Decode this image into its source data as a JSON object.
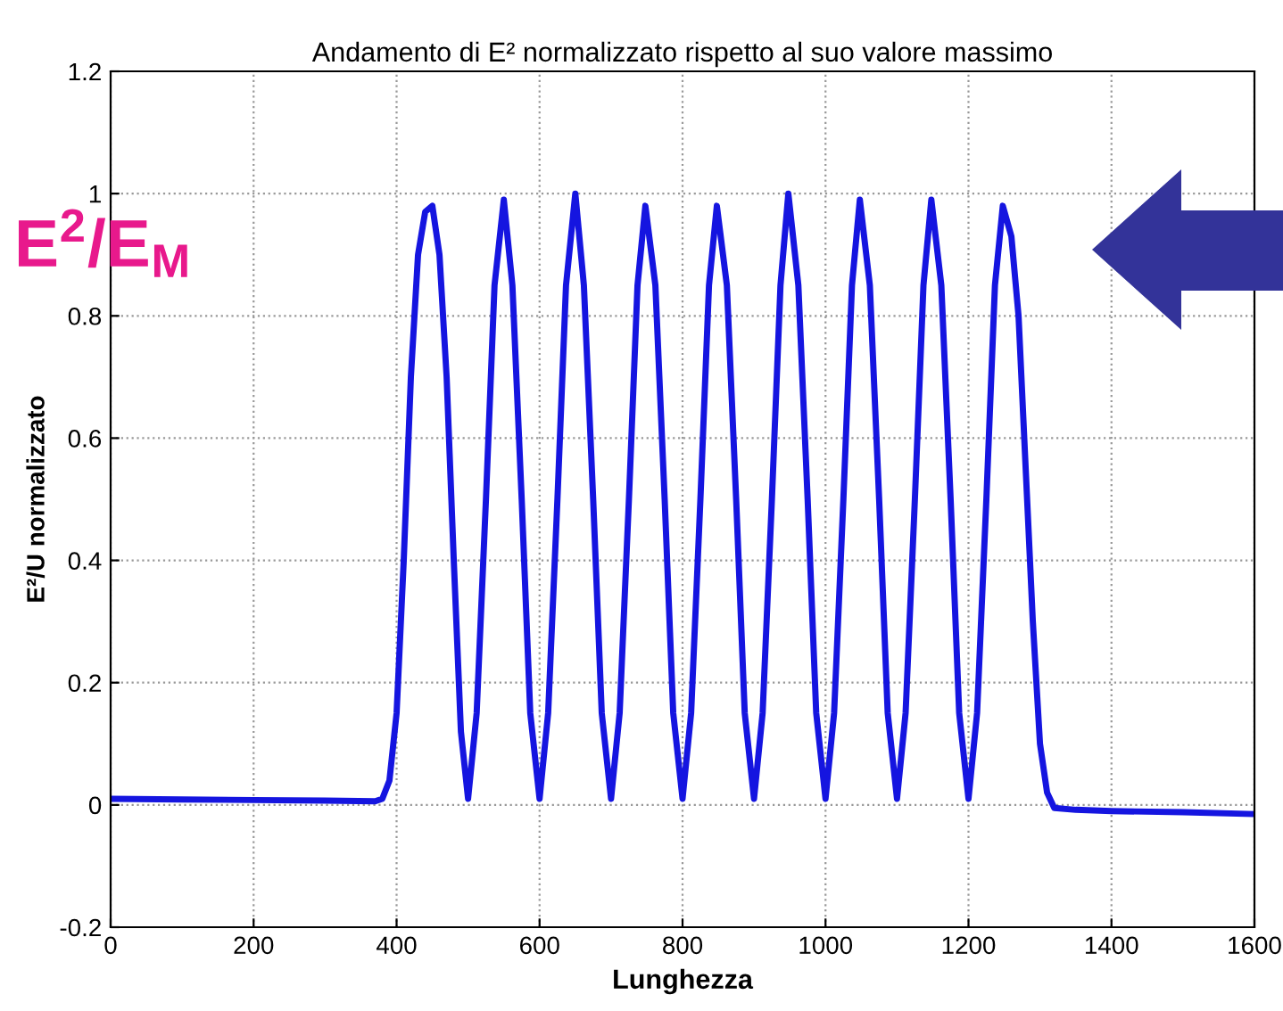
{
  "chart_data": {
    "type": "line",
    "title": "Andamento di E² normalizzato rispetto al suo valore massimo",
    "xlabel": "Lunghezza",
    "ylabel": "E²/U normalizzato",
    "annotations": [
      "E$^{2}$/E$_{M}$"
    ],
    "xlim": [
      0,
      1600
    ],
    "xticks": [
      0,
      200,
      400,
      600,
      800,
      1000,
      1200,
      1400,
      1600
    ],
    "ylim": [
      -0.2,
      1.2
    ],
    "yticks": [
      -0.2,
      0,
      0.2,
      0.4,
      0.6,
      0.8,
      1,
      1.2
    ],
    "grid": true,
    "line_style": "solid",
    "marker": "none",
    "series": [
      {
        "color": "#1515e0",
        "x": [
          0,
          100,
          200,
          300,
          370,
          380,
          390,
          400,
          410,
          420,
          430,
          440,
          450,
          460,
          470,
          480,
          490,
          500,
          512,
          525,
          537,
          550,
          562,
          575,
          587,
          600,
          612,
          625,
          637,
          650,
          662,
          675,
          687,
          700,
          712,
          725,
          737,
          748,
          762,
          775,
          787,
          800,
          812,
          825,
          837,
          848,
          862,
          875,
          887,
          900,
          912,
          925,
          937,
          948,
          962,
          975,
          987,
          1000,
          1012,
          1025,
          1037,
          1048,
          1062,
          1075,
          1087,
          1100,
          1112,
          1125,
          1137,
          1148,
          1162,
          1175,
          1187,
          1200,
          1212,
          1225,
          1237,
          1248,
          1260,
          1270,
          1280,
          1290,
          1300,
          1310,
          1320,
          1350,
          1400,
          1500,
          1600
        ],
        "values": [
          0.01,
          0.009,
          0.008,
          0.007,
          0.006,
          0.01,
          0.04,
          0.15,
          0.4,
          0.7,
          0.9,
          0.97,
          0.98,
          0.9,
          0.7,
          0.4,
          0.12,
          0.01,
          0.15,
          0.5,
          0.85,
          0.99,
          0.85,
          0.5,
          0.15,
          0.01,
          0.15,
          0.5,
          0.85,
          1.0,
          0.85,
          0.5,
          0.15,
          0.01,
          0.15,
          0.5,
          0.85,
          0.98,
          0.85,
          0.5,
          0.15,
          0.01,
          0.15,
          0.5,
          0.85,
          0.98,
          0.85,
          0.5,
          0.15,
          0.01,
          0.15,
          0.5,
          0.85,
          1.0,
          0.85,
          0.5,
          0.15,
          0.01,
          0.15,
          0.5,
          0.85,
          0.99,
          0.85,
          0.5,
          0.15,
          0.01,
          0.15,
          0.5,
          0.85,
          0.99,
          0.85,
          0.5,
          0.15,
          0.01,
          0.15,
          0.5,
          0.85,
          0.98,
          0.93,
          0.8,
          0.55,
          0.3,
          0.1,
          0.02,
          -0.005,
          -0.008,
          -0.01,
          -0.012,
          -0.015
        ]
      }
    ]
  }
}
